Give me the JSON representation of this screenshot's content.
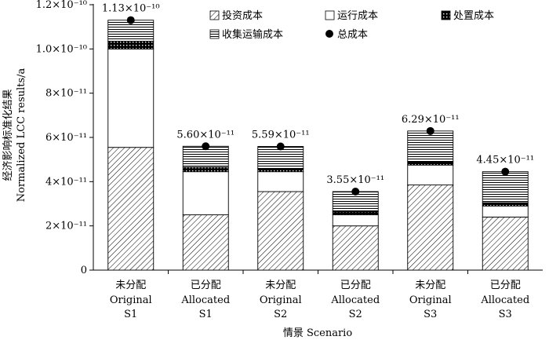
{
  "chart_data": {
    "type": "bar",
    "stacked": true,
    "ylabel_cn": "经济影响标准化结果",
    "ylabel_en": "Normalized LCC results/a",
    "xlabel": "情景 Scenario",
    "y_ticks": [
      "0",
      "2×10⁻¹¹",
      "4×10⁻¹¹",
      "6×10⁻¹¹",
      "8×10⁻¹¹",
      "1.0×10⁻¹⁰",
      "1.2×10⁻¹⁰"
    ],
    "ylim": [
      0,
      1.2e-10
    ],
    "categories": [
      {
        "line1": "未分配",
        "line2": "Original",
        "line3": "S1"
      },
      {
        "line1": "已分配",
        "line2": "Allocated",
        "line3": "S1"
      },
      {
        "line1": "未分配",
        "line2": "Original",
        "line3": "S2"
      },
      {
        "line1": "已分配",
        "line2": "Allocated",
        "line3": "S2"
      },
      {
        "line1": "未分配",
        "line2": "Original",
        "line3": "S3"
      },
      {
        "line1": "已分配",
        "line2": "Allocated",
        "line3": "S3"
      }
    ],
    "series": [
      {
        "name": "投资成本",
        "pattern": "diagonal",
        "values": [
          5.55e-11,
          2.5e-11,
          3.55e-11,
          2e-11,
          3.85e-11,
          2.4e-11
        ]
      },
      {
        "name": "运行成本",
        "pattern": "white",
        "values": [
          4.45e-11,
          1.95e-11,
          9e-12,
          5e-12,
          9e-12,
          5e-12
        ]
      },
      {
        "name": "处置成本",
        "pattern": "dots",
        "values": [
          3.5e-12,
          2e-12,
          1.5e-12,
          1.5e-12,
          1.5e-12,
          1.5e-12
        ]
      },
      {
        "name": "收集运输成本",
        "pattern": "horizontal",
        "values": [
          9.5e-12,
          9.5e-12,
          9.9e-12,
          9e-12,
          1.39e-11,
          1.4e-11
        ]
      }
    ],
    "total_series": {
      "name": "总成本",
      "values": [
        1.13e-10,
        5.6e-11,
        5.59e-11,
        3.55e-11,
        6.29e-11,
        4.45e-11
      ],
      "labels": [
        "1.13×10⁻¹⁰",
        "5.60×10⁻¹¹",
        "5.59×10⁻¹¹",
        "3.55×10⁻¹¹",
        "6.29×10⁻¹¹",
        "4.45×10⁻¹¹"
      ]
    },
    "legend_placement": "top-right, inside plot",
    "grid": false
  }
}
